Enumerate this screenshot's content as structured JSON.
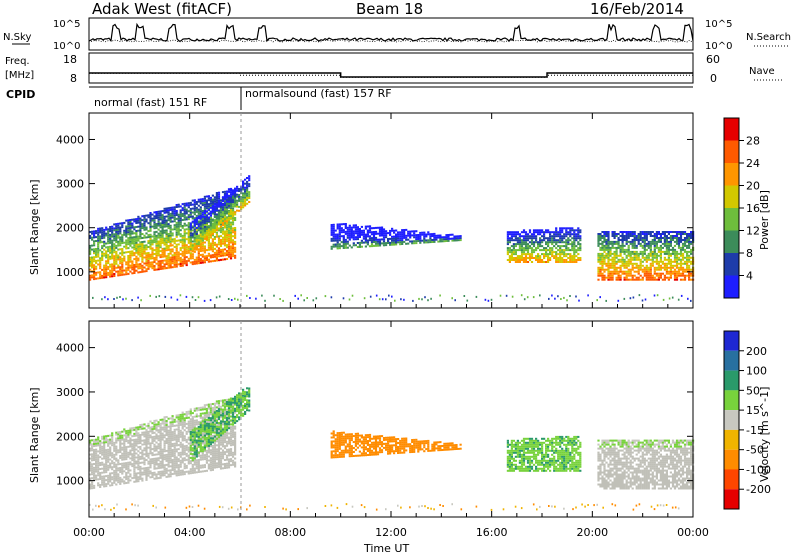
{
  "header": {
    "title": "Adak West (fitACF)",
    "beam": "Beam 18",
    "date": "16/Feb/2014"
  },
  "noise_panel": {
    "left_label": "N.Sky",
    "right_label": "N.Search",
    "left_ticks": [
      "10^5",
      "10^0"
    ],
    "right_ticks": [
      "10^5",
      "10^0"
    ]
  },
  "freq_panel": {
    "left_label_1": "Freq.",
    "left_label_2": "[MHz]",
    "right_label": "Nave",
    "left_ticks": [
      "18",
      "8"
    ],
    "right_ticks": [
      "60",
      "0"
    ]
  },
  "cpid_panel": {
    "label": "CPID",
    "modes": [
      {
        "name": "normal (fast) 151 RF",
        "start_hour": 0,
        "end_hour": 6
      },
      {
        "name": "normalsound (fast) 157 RF",
        "start_hour": 6,
        "end_hour": 24
      }
    ]
  },
  "power_panel": {
    "ylabel": "Slant Range [km]",
    "yticks": [
      "1000",
      "2000",
      "3000",
      "4000"
    ],
    "colorbar_label": "Power [dB]",
    "colorbar_ticks": [
      "4",
      "8",
      "12",
      "16",
      "20",
      "24",
      "28"
    ],
    "colors": [
      "#1e1eff",
      "#1e3caa",
      "#3c8c5a",
      "#6ebe3c",
      "#d2c800",
      "#ff9600",
      "#ff5a00",
      "#e60000"
    ]
  },
  "velocity_panel": {
    "ylabel": "Slant Range [km]",
    "yticks": [
      "1000",
      "2000",
      "3000",
      "4000"
    ],
    "colorbar_label": "Velocity [m s^-1]",
    "colorbar_ticks": [
      "200",
      "100",
      "50",
      "15",
      "-15",
      "-50",
      "-100",
      "-200"
    ],
    "colors": [
      "#1e28d2",
      "#2870a0",
      "#2a9a6a",
      "#78d23c",
      "#c8c8c0",
      "#f0b400",
      "#ff8c00",
      "#ff4600",
      "#e60000"
    ],
    "ground_scatter_color": "#c0c0b8"
  },
  "xaxis": {
    "label": "Time UT",
    "ticks": [
      "00:00",
      "04:00",
      "08:00",
      "12:00",
      "16:00",
      "20:00",
      "00:00"
    ]
  },
  "chart_data": {
    "type": "heatmap",
    "x_range_hours": [
      0,
      24
    ],
    "y_range_km": [
      180,
      4600
    ],
    "noise": {
      "sky_spike_hours": [
        1.1,
        2.0,
        3.3,
        5.6,
        6.9,
        17.0,
        20.8,
        22.5,
        23.8
      ]
    },
    "frequency": {
      "segments": [
        {
          "from": 0,
          "to": 10,
          "mhz": 12
        },
        {
          "from": 10,
          "to": 18.2,
          "mhz": 10.4
        },
        {
          "from": 18.2,
          "to": 24,
          "mhz": 12
        }
      ]
    },
    "nave": {
      "segments": [
        {
          "from": 0,
          "to": 6,
          "value": 22
        },
        {
          "from": 6,
          "to": 10,
          "value": 17
        },
        {
          "from": 10,
          "to": 18.2,
          "value": 12
        },
        {
          "from": 18.2,
          "to": 24,
          "value": 17
        }
      ]
    },
    "regions": [
      {
        "name": "early-band",
        "t0": 0,
        "t1": 5.8,
        "r_low_start": 800,
        "r_low_end": 1300,
        "r_high_start": 1900,
        "r_high_end": 2900,
        "power_core": 26,
        "vel": 0
      },
      {
        "name": "dusk-arc",
        "t0": 4.0,
        "t1": 6.4,
        "r_low_start": 1400,
        "r_low_end": 2600,
        "r_high_start": 2100,
        "r_high_end": 3200,
        "power_core": 20,
        "vel": 30
      },
      {
        "name": "midday-thin",
        "t0": 9.6,
        "t1": 14.8,
        "r_low_start": 1500,
        "r_low_end": 1700,
        "r_high_start": 2100,
        "r_high_end": 1800,
        "power_core": 12,
        "vel": -120
      },
      {
        "name": "evening-blob",
        "t0": 16.6,
        "t1": 19.5,
        "r_low_start": 1200,
        "r_low_end": 1200,
        "r_high_start": 1900,
        "r_high_end": 2000,
        "power_core": 22,
        "vel": 20
      },
      {
        "name": "late-band",
        "t0": 20.2,
        "t1": 24,
        "r_low_start": 800,
        "r_low_end": 800,
        "r_high_start": 1900,
        "r_high_end": 1900,
        "power_core": 26,
        "vel": 0
      }
    ]
  }
}
